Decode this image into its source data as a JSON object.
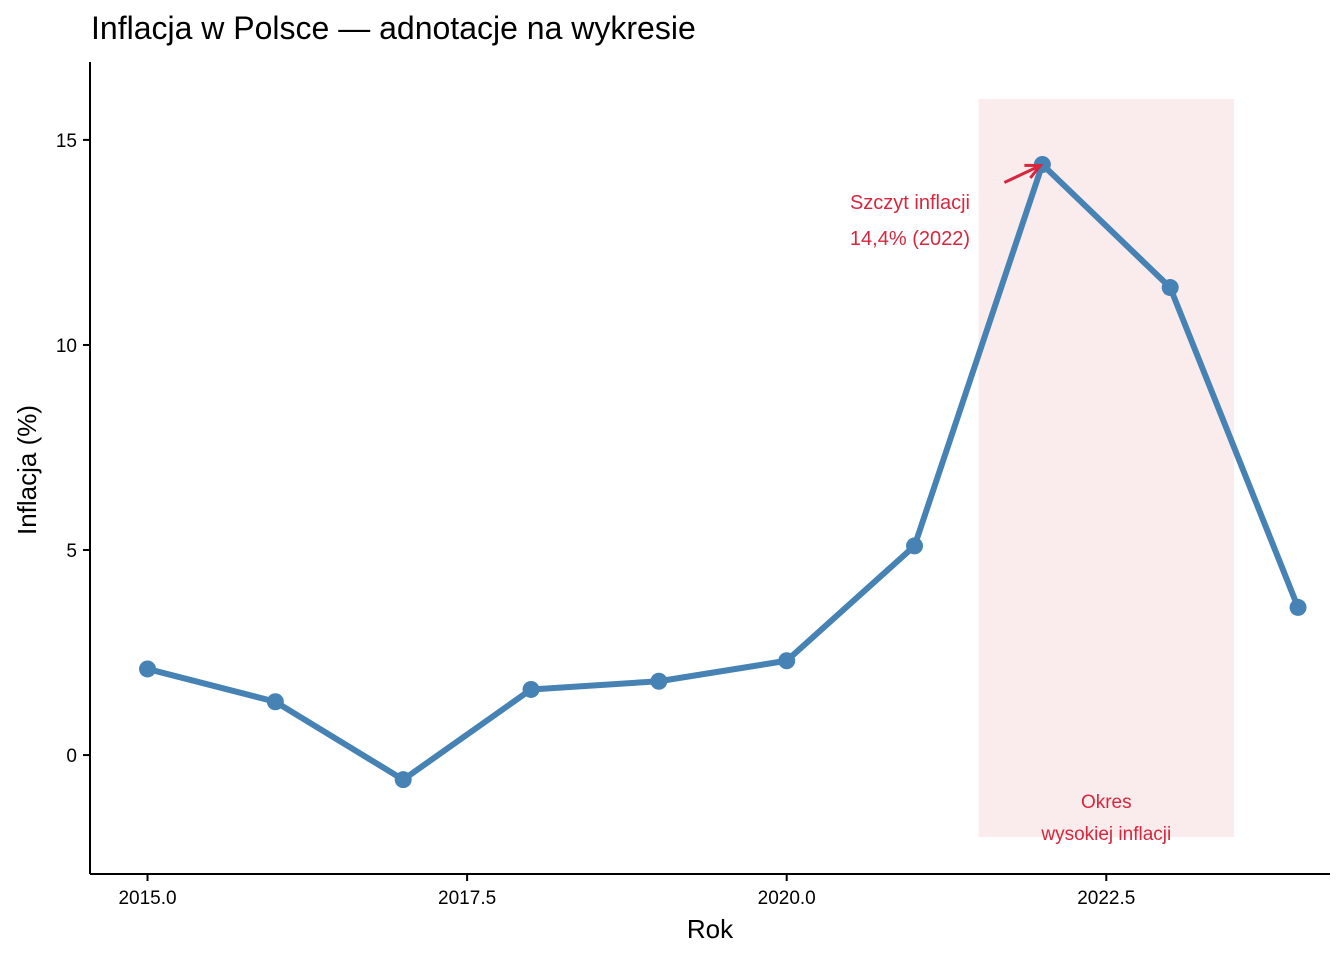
{
  "chart_data": {
    "type": "line",
    "title": "Inflacja w Polsce — adnotacje na wykresie",
    "xlabel": "Rok",
    "ylabel": "Inflacja (%)",
    "xlim": [
      2014.55,
      2024.25
    ],
    "ylim": [
      -2.9,
      16.9
    ],
    "x_ticks": [
      2015.0,
      2017.5,
      2020.0,
      2022.5
    ],
    "x_tick_labels": [
      "2015.0",
      "2017.5",
      "2020.0",
      "2022.5"
    ],
    "y_ticks": [
      0,
      5,
      10,
      15
    ],
    "y_tick_labels": [
      "0",
      "5",
      "10",
      "15"
    ],
    "grid": false,
    "series": [
      {
        "x": [
          2015,
          2016,
          2017,
          2018,
          2019,
          2020,
          2021,
          2022,
          2023,
          2024
        ],
        "values": [
          2.1,
          1.3,
          -0.6,
          1.6,
          1.8,
          2.3,
          5.1,
          14.4,
          11.4,
          3.6
        ],
        "color": "#4682B4"
      }
    ],
    "highlight_region": {
      "x_range": [
        2021.5,
        2023.5
      ],
      "y_range": [
        -2.0,
        16.0
      ],
      "color": "#FAECEC",
      "label_lines": [
        "Okres",
        "wysokiej inflacji"
      ],
      "label_color": "#D7263D"
    },
    "annotation": {
      "lines": [
        "Szczyt inflacji",
        "14,4% (2022)"
      ],
      "point": [
        2022,
        14.4
      ],
      "color": "#D7263D"
    }
  }
}
